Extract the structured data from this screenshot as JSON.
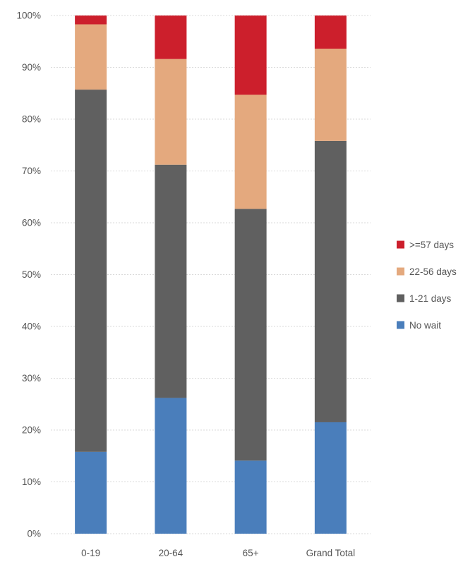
{
  "chart_data": {
    "type": "bar",
    "stacked": true,
    "percent": true,
    "categories": [
      "0-19",
      "20-64",
      "65+",
      "Grand Total"
    ],
    "series": [
      {
        "name": "No wait",
        "color": "#4a7ebb",
        "values": [
          15.8,
          26.2,
          14.1,
          21.5
        ]
      },
      {
        "name": "1-21 days",
        "color": "#606060",
        "values": [
          69.9,
          45.0,
          48.6,
          54.3
        ]
      },
      {
        "name": "22-56 days",
        "color": "#e4a97e",
        "values": [
          12.6,
          20.4,
          22.0,
          17.8
        ]
      },
      {
        "name": ">=57 days",
        "color": "#cc1f2c",
        "values": [
          1.7,
          8.4,
          15.3,
          6.4
        ]
      }
    ],
    "yticks": [
      "0%",
      "10%",
      "20%",
      "30%",
      "40%",
      "50%",
      "60%",
      "70%",
      "80%",
      "90%",
      "100%"
    ],
    "ylim": [
      0,
      100
    ],
    "grid": true,
    "legend": {
      "position": "right",
      "order": [
        ">=57 days",
        "22-56 days",
        "1-21 days",
        "No wait"
      ]
    }
  }
}
